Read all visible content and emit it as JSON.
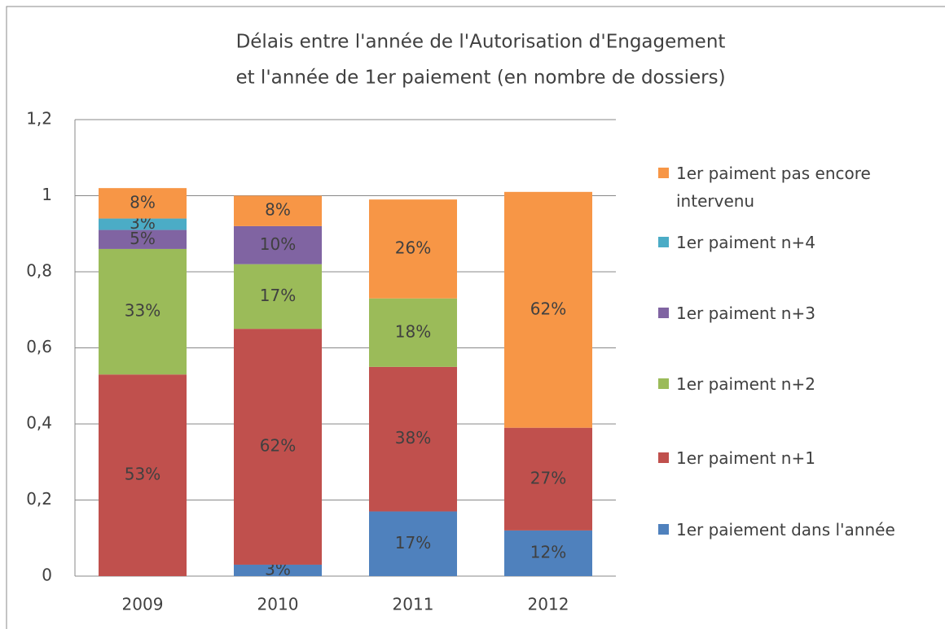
{
  "chart_data": {
    "type": "stacked_bar",
    "title": [
      "Délais entre l'année de l'Autorisation d'Engagement",
      "et l'année de 1er paiement  (en nombre de dossiers)"
    ],
    "categories": [
      "2009",
      "2010",
      "2011",
      "2012"
    ],
    "ylim": [
      0,
      1.2
    ],
    "yticks": [
      0,
      {
        "value": 0.2,
        "label": "0,2"
      },
      {
        "value": 0.4,
        "label": "0,4"
      },
      {
        "value": 0.6,
        "label": "0,6"
      },
      {
        "value": 0.8,
        "label": "0,8"
      },
      1,
      {
        "value": 1.2,
        "label": "1,2"
      }
    ],
    "grid": true,
    "legend": "right",
    "series": [
      {
        "name": "1er paiement dans l'année",
        "color": "#4f81bd",
        "values": [
          0,
          0.03,
          0.17,
          0.12
        ],
        "value_labels": [
          null,
          "3%",
          "17%",
          "12%"
        ]
      },
      {
        "name": "1er paiment n+1",
        "color": "#c0504d",
        "values": [
          0.53,
          0.62,
          0.38,
          0.27
        ],
        "value_labels": [
          "53%",
          "62%",
          "38%",
          "27%"
        ]
      },
      {
        "name": "1er paiment n+2",
        "color": "#9bbb59",
        "values": [
          0.33,
          0.17,
          0.18,
          0
        ],
        "value_labels": [
          "33%",
          "17%",
          "18%",
          null
        ]
      },
      {
        "name": "1er paiment n+3",
        "color": "#8064a2",
        "values": [
          0.05,
          0.1,
          0,
          0
        ],
        "value_labels": [
          "5%",
          "10%",
          null,
          null
        ]
      },
      {
        "name": "1er paiment n+4",
        "color": "#4bacc6",
        "values": [
          0.03,
          0,
          0,
          0
        ],
        "value_labels": [
          "3%",
          null,
          null,
          null
        ]
      },
      {
        "name": "1er paiment pas encore intervenu",
        "color": "#f79646",
        "values": [
          0.08,
          0.08,
          0.26,
          0.62
        ],
        "value_labels": [
          "8%",
          "8%",
          "26%",
          "62%"
        ]
      }
    ]
  }
}
